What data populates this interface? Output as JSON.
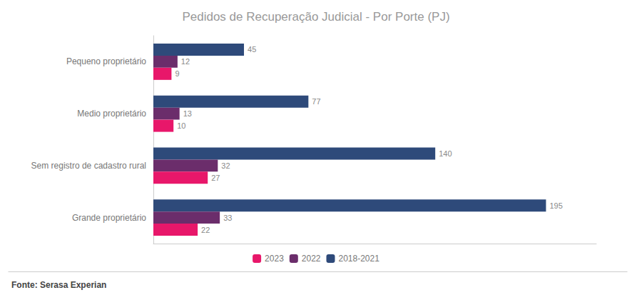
{
  "chart_data": {
    "type": "bar",
    "orientation": "horizontal",
    "title": "Pedidos de Recuperação Judicial - Por Porte (PJ)",
    "categories": [
      "Grande proprietário",
      "Sem registro de cadastro rural",
      "Medio proprietário",
      "Pequeno proprietário"
    ],
    "series": [
      {
        "name": "2023",
        "color": "#e8176a",
        "values": [
          22,
          27,
          10,
          9
        ]
      },
      {
        "name": "2022",
        "color": "#6b2d6b",
        "values": [
          33,
          32,
          13,
          12
        ]
      },
      {
        "name": "2018-2021",
        "color": "#2e4a7a",
        "values": [
          195,
          140,
          77,
          45
        ]
      }
    ],
    "xlim": [
      0,
      220
    ],
    "data_labels": true,
    "tick_labels": "y",
    "grid": false,
    "legend": "bottom",
    "annotations": [
      "Fonte: Serasa Experian"
    ]
  }
}
